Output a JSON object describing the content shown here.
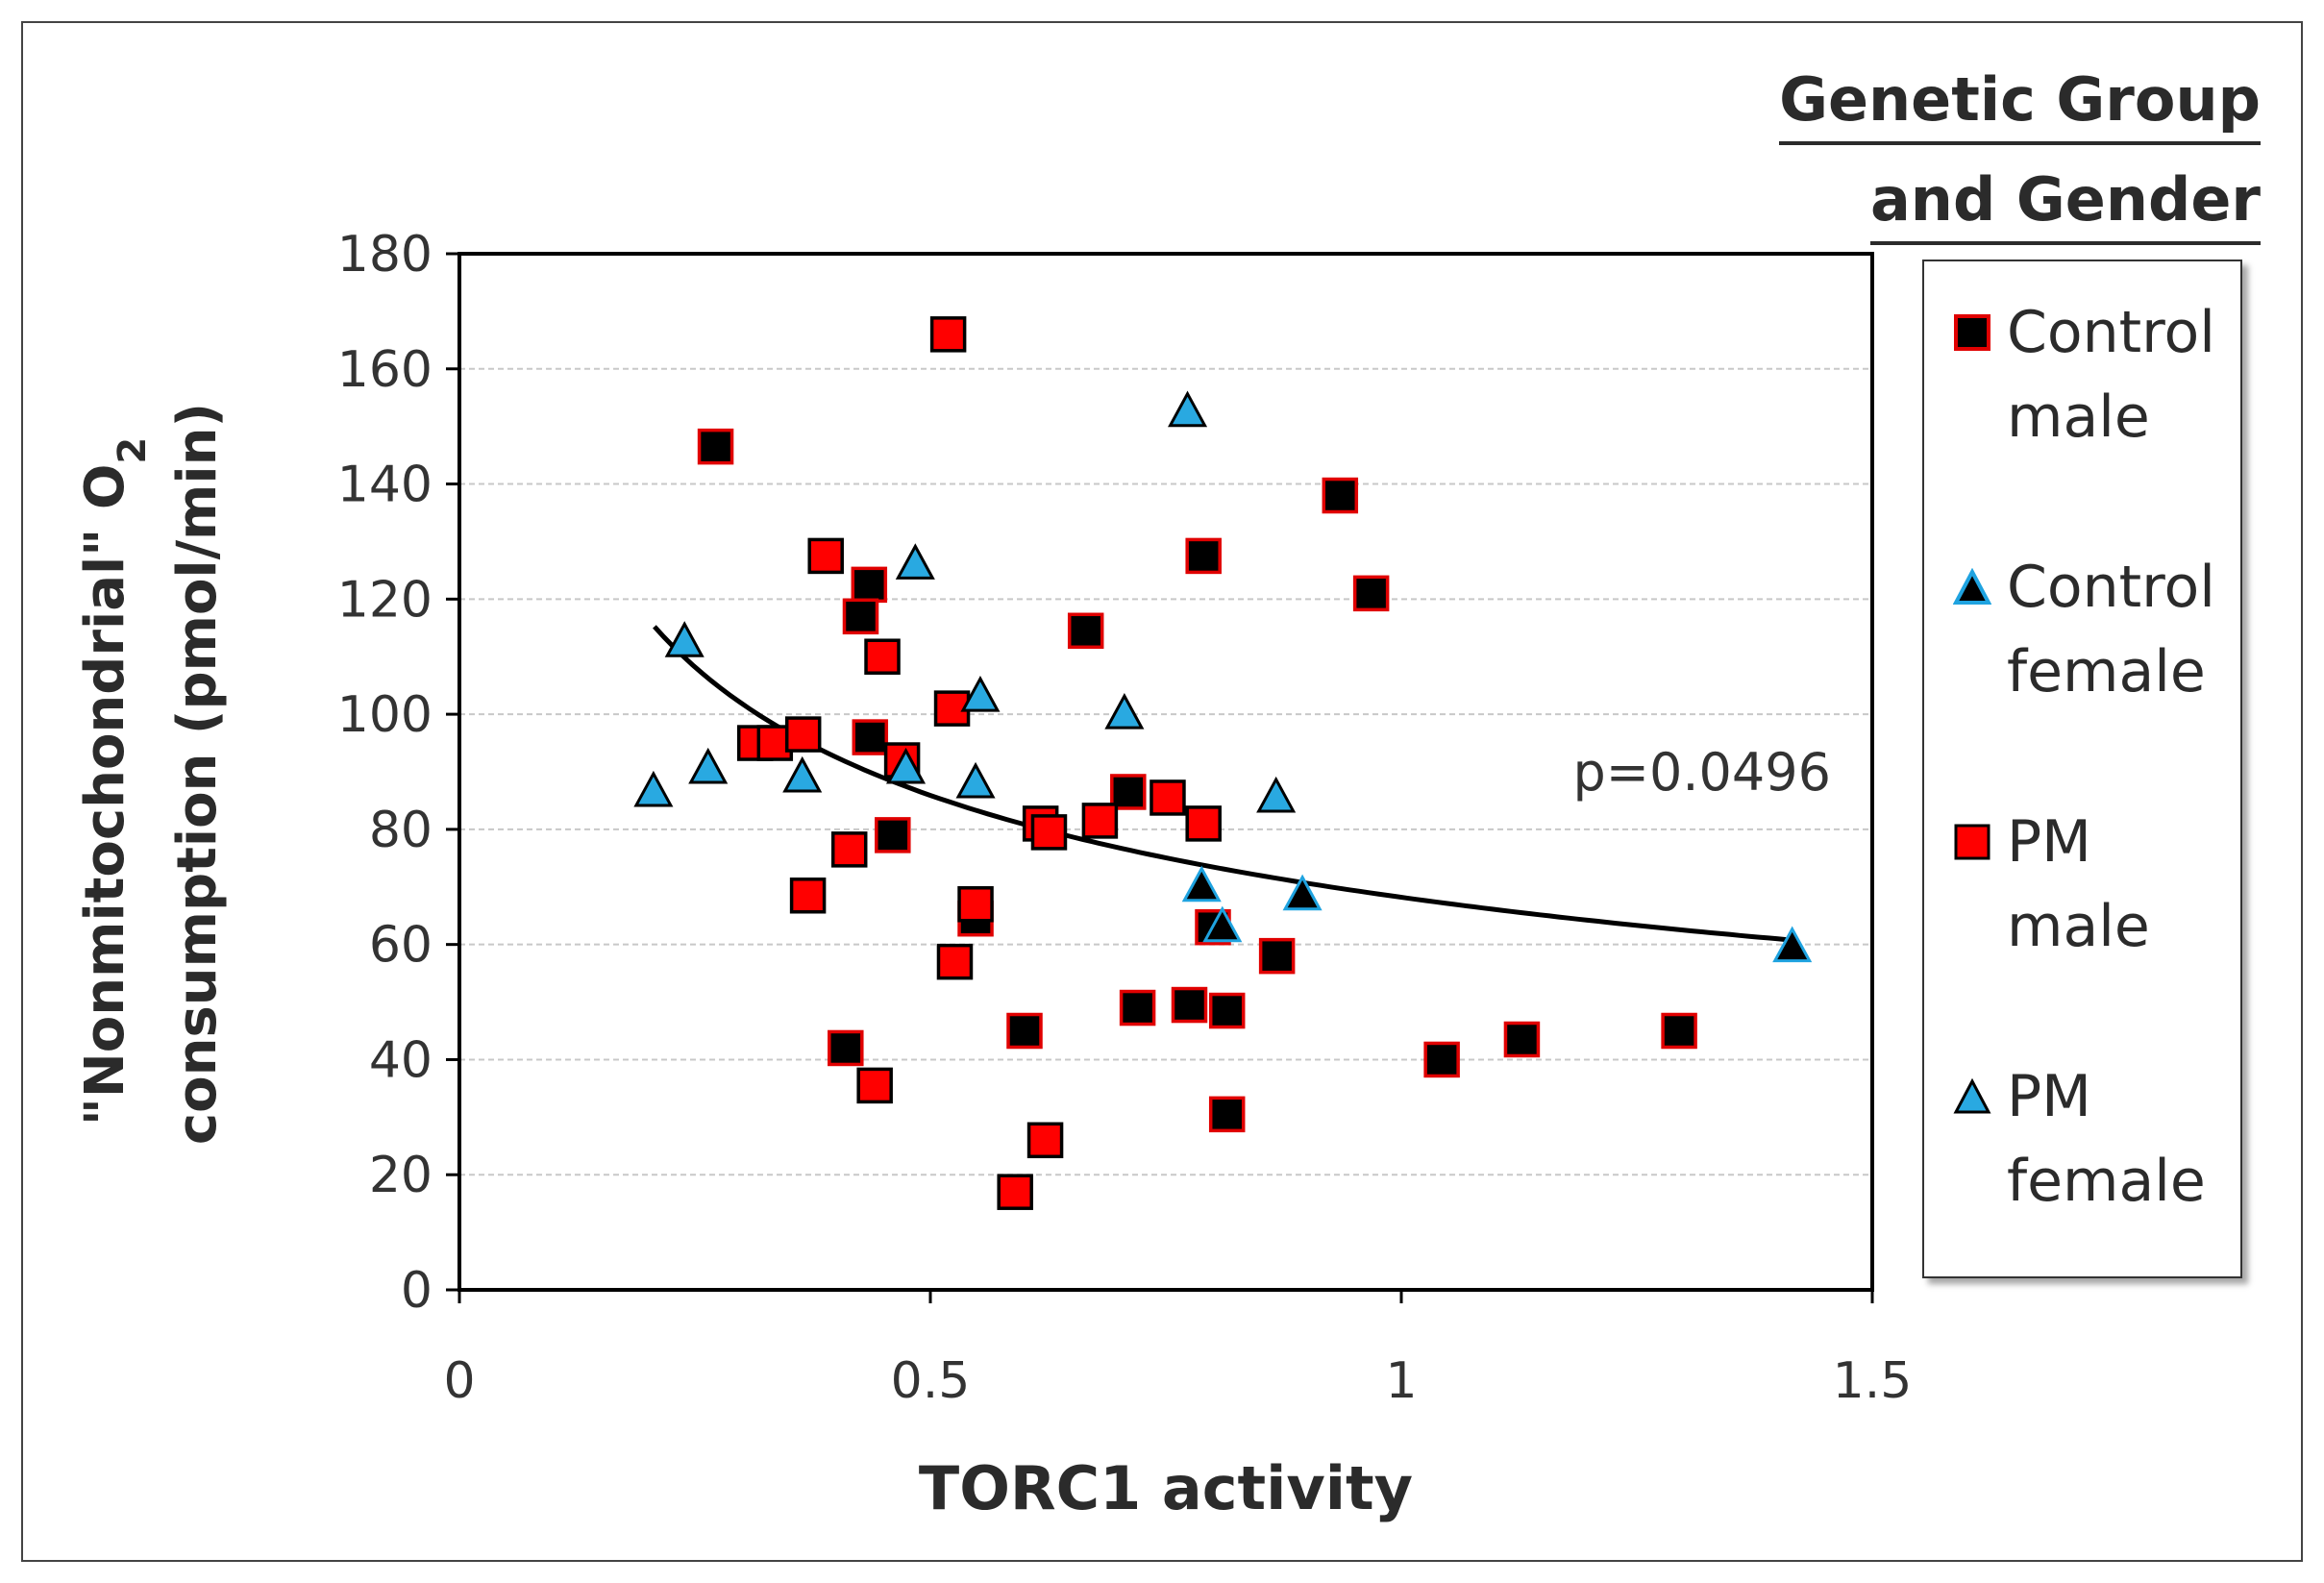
{
  "chart_data": {
    "type": "scatter",
    "xlabel": "TORC1 activity",
    "ylabel_line1": "\"Nonmitochondrial\" O",
    "ylabel_sub": "2",
    "ylabel_line2": "consumption (pmol/min)",
    "xlim": [
      0,
      1.5
    ],
    "ylim": [
      0,
      180
    ],
    "xticks": [
      0,
      0.5,
      1,
      1.5
    ],
    "xtick_labels": [
      "0",
      "0.5",
      "1",
      "1.5"
    ],
    "yticks": [
      0,
      20,
      40,
      60,
      80,
      100,
      120,
      140,
      160,
      180
    ],
    "ytick_labels": [
      "0",
      "20",
      "40",
      "60",
      "80",
      "100",
      "120",
      "140",
      "160",
      "180"
    ],
    "grid": "horizontal-dashed",
    "annotation": "p=0.0496",
    "trendline": {
      "type": "power",
      "a": 68.2,
      "b": -0.333,
      "x_start": 0.207,
      "x_end": 1.42
    },
    "series": [
      {
        "name": "Control male",
        "marker": "square",
        "fill": "#000000",
        "edge": "#e00000",
        "points": [
          [
            0.272,
            146.5
          ],
          [
            0.435,
            122.5
          ],
          [
            0.426,
            117.0
          ],
          [
            0.436,
            96.0
          ],
          [
            0.46,
            79.0
          ],
          [
            0.665,
            114.5
          ],
          [
            0.71,
            86.5
          ],
          [
            0.79,
            127.5
          ],
          [
            0.935,
            138.0
          ],
          [
            0.968,
            121.0
          ],
          [
            0.8,
            63.0
          ],
          [
            0.72,
            49.0
          ],
          [
            0.775,
            49.5
          ],
          [
            0.815,
            48.5
          ],
          [
            0.868,
            58.0
          ],
          [
            0.815,
            30.5
          ],
          [
            0.6,
            45.0
          ],
          [
            0.41,
            42.0
          ],
          [
            1.043,
            40.0
          ],
          [
            1.128,
            43.5
          ],
          [
            1.295,
            45.0
          ],
          [
            0.548,
            64.5
          ]
        ]
      },
      {
        "name": "Control female",
        "marker": "triangle",
        "fill": "#000000",
        "edge": "#1fa3e0",
        "points": [
          [
            0.788,
            70.0
          ],
          [
            0.81,
            63.0
          ],
          [
            0.895,
            68.5
          ],
          [
            1.415,
            59.5
          ]
        ]
      },
      {
        "name": "PM male",
        "marker": "square",
        "fill": "#ff0000",
        "edge": "#000000",
        "points": [
          [
            0.519,
            166.0
          ],
          [
            0.389,
            127.5
          ],
          [
            0.449,
            110.0
          ],
          [
            0.523,
            101.0
          ],
          [
            0.314,
            95.0
          ],
          [
            0.335,
            95.0
          ],
          [
            0.365,
            96.5
          ],
          [
            0.47,
            92.0
          ],
          [
            0.414,
            76.5
          ],
          [
            0.37,
            68.5
          ],
          [
            0.617,
            81.0
          ],
          [
            0.626,
            79.5
          ],
          [
            0.68,
            81.5
          ],
          [
            0.752,
            85.5
          ],
          [
            0.79,
            81.0
          ],
          [
            0.548,
            67.0
          ],
          [
            0.526,
            57.0
          ],
          [
            0.441,
            35.5
          ],
          [
            0.59,
            17.0
          ],
          [
            0.622,
            26.0
          ]
        ]
      },
      {
        "name": "PM female",
        "marker": "triangle",
        "fill": "#29a9e1",
        "edge": "#000000",
        "points": [
          [
            0.206,
            86.5
          ],
          [
            0.239,
            112.5
          ],
          [
            0.264,
            90.5
          ],
          [
            0.364,
            89.0
          ],
          [
            0.484,
            126.0
          ],
          [
            0.474,
            90.5
          ],
          [
            0.553,
            103.0
          ],
          [
            0.548,
            88.0
          ],
          [
            0.706,
            100.0
          ],
          [
            0.773,
            152.5
          ],
          [
            0.867,
            85.5
          ]
        ]
      }
    ]
  },
  "legend": {
    "title_line1": "Genetic Group",
    "title_line2": "and Gender",
    "items": [
      {
        "label": "Control\nmale",
        "marker": "square",
        "fill": "#000000",
        "edge": "#e00000"
      },
      {
        "label": "Control\nfemale",
        "marker": "triangle",
        "fill": "#000000",
        "edge": "#1fa3e0"
      },
      {
        "label": "PM\nmale",
        "marker": "square",
        "fill": "#ff0000",
        "edge": "#000000"
      },
      {
        "label": "PM\nfemale",
        "marker": "triangle",
        "fill": "#29a9e1",
        "edge": "#000000"
      }
    ]
  }
}
